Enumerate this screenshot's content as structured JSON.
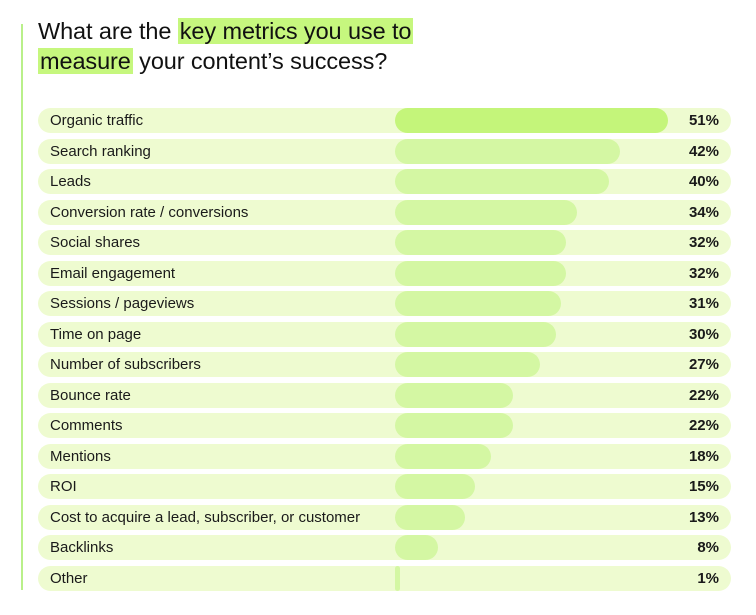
{
  "title": {
    "part1": "What are the ",
    "highlight1": "key metrics you use to",
    "highlight2": "measure",
    "part2": " your content’s success?"
  },
  "colors": {
    "accent": "#c6f77e",
    "row_background": "#eefbd0",
    "bar": "#d4f7a3",
    "top_bar": "#c4f57a"
  },
  "chart_data": {
    "type": "bar",
    "orientation": "horizontal",
    "title": "What are the key metrics you use to measure your content’s success?",
    "unit": "%",
    "xlim": [
      0,
      51
    ],
    "categories": [
      "Organic traffic",
      "Search ranking",
      "Leads",
      "Conversion rate / conversions",
      "Social shares",
      "Email engagement",
      "Sessions / pageviews",
      "Time on page",
      "Number of subscribers",
      "Bounce rate",
      "Comments",
      "Mentions",
      "ROI",
      "Cost to acquire a lead, subscriber, or customer",
      "Backlinks",
      "Other"
    ],
    "values": [
      51,
      42,
      40,
      34,
      32,
      32,
      31,
      30,
      27,
      22,
      22,
      18,
      15,
      13,
      8,
      1
    ],
    "labels": [
      "51%",
      "42%",
      "40%",
      "34%",
      "32%",
      "32%",
      "31%",
      "30%",
      "27%",
      "22%",
      "22%",
      "18%",
      "15%",
      "13%",
      "8%",
      "1%"
    ]
  }
}
